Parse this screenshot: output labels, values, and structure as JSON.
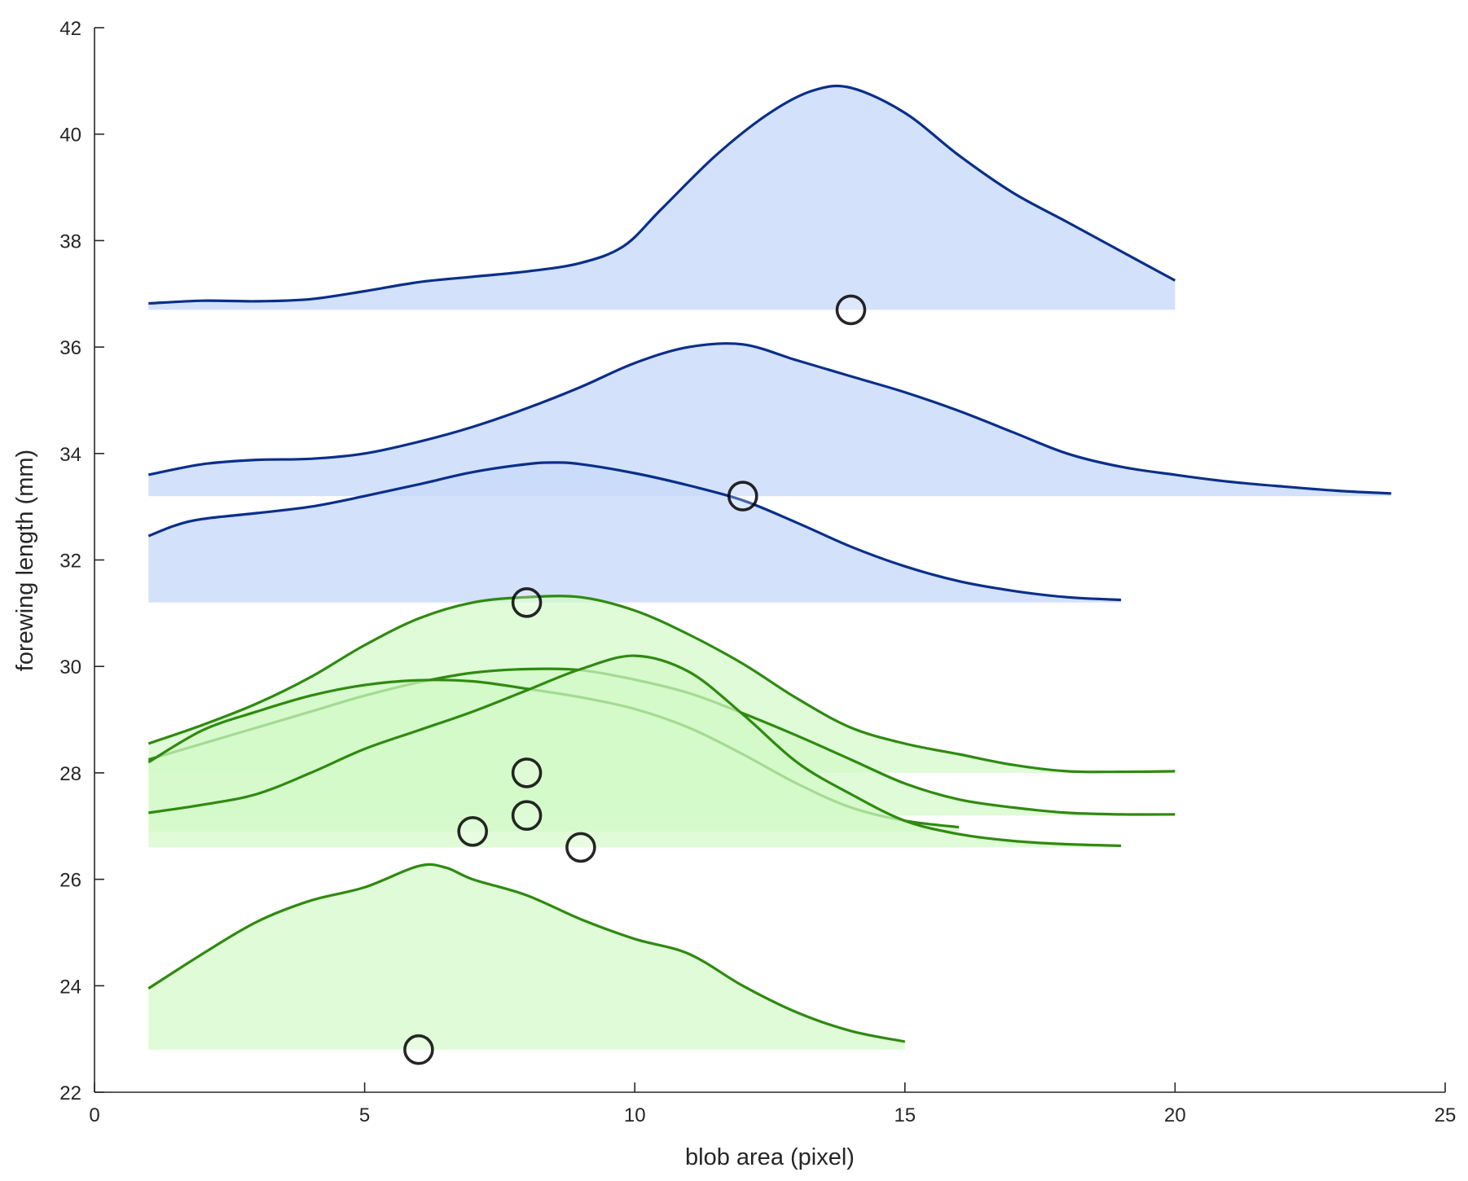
{
  "chart_data": {
    "type": "area",
    "title": "",
    "xlabel": "blob area (pixel)",
    "ylabel": "forewing length (mm)",
    "xlim": [
      0,
      25
    ],
    "ylim": [
      22,
      42
    ],
    "xticks": [
      0,
      5,
      10,
      15,
      20,
      25
    ],
    "yticks": [
      22,
      24,
      26,
      28,
      30,
      32,
      34,
      36,
      38,
      40,
      42
    ],
    "grid": false,
    "legend": "none",
    "colors": {
      "blue_line": "#0a2f8a",
      "blue_fill": "#c9dbfa",
      "green_line": "#2f8a10",
      "green_fill": "#d3fac7",
      "marker_stroke": "#000000",
      "marker_fill": "#ffffff"
    },
    "series": [
      {
        "group": "blue",
        "baseline": 36.7,
        "marker": [
          14,
          36.7
        ],
        "curve": [
          [
            1,
            36.82
          ],
          [
            2,
            36.87
          ],
          [
            3,
            36.86
          ],
          [
            4,
            36.9
          ],
          [
            5,
            37.05
          ],
          [
            6,
            37.22
          ],
          [
            7,
            37.32
          ],
          [
            8,
            37.42
          ],
          [
            9,
            37.58
          ],
          [
            9.8,
            37.9
          ],
          [
            10.5,
            38.6
          ],
          [
            11.5,
            39.6
          ],
          [
            12.5,
            40.4
          ],
          [
            13.3,
            40.82
          ],
          [
            14,
            40.87
          ],
          [
            15,
            40.4
          ],
          [
            16,
            39.6
          ],
          [
            17,
            38.9
          ],
          [
            18,
            38.35
          ],
          [
            19,
            37.8
          ],
          [
            20,
            37.25
          ]
        ]
      },
      {
        "group": "blue",
        "baseline": 33.2,
        "marker": [
          12,
          33.2
        ],
        "curve": [
          [
            1,
            33.6
          ],
          [
            2,
            33.8
          ],
          [
            3,
            33.88
          ],
          [
            4,
            33.9
          ],
          [
            5,
            34.0
          ],
          [
            6,
            34.22
          ],
          [
            7,
            34.5
          ],
          [
            8,
            34.85
          ],
          [
            9,
            35.25
          ],
          [
            10,
            35.7
          ],
          [
            11,
            36.0
          ],
          [
            12,
            36.05
          ],
          [
            13,
            35.75
          ],
          [
            14,
            35.45
          ],
          [
            15,
            35.15
          ],
          [
            16,
            34.8
          ],
          [
            17,
            34.4
          ],
          [
            18,
            34.0
          ],
          [
            19,
            33.75
          ],
          [
            20,
            33.6
          ],
          [
            21,
            33.47
          ],
          [
            22,
            33.38
          ],
          [
            23,
            33.3
          ],
          [
            24,
            33.25
          ]
        ]
      },
      {
        "group": "blue",
        "baseline": 31.2,
        "marker": [
          8,
          31.2
        ],
        "curve": [
          [
            1,
            32.45
          ],
          [
            1.5,
            32.65
          ],
          [
            2,
            32.77
          ],
          [
            3,
            32.88
          ],
          [
            4,
            33.0
          ],
          [
            5,
            33.2
          ],
          [
            6,
            33.42
          ],
          [
            7,
            33.65
          ],
          [
            8,
            33.8
          ],
          [
            8.5,
            33.83
          ],
          [
            9,
            33.8
          ],
          [
            10,
            33.63
          ],
          [
            11,
            33.4
          ],
          [
            12,
            33.12
          ],
          [
            13,
            32.7
          ],
          [
            14,
            32.25
          ],
          [
            15,
            31.88
          ],
          [
            16,
            31.6
          ],
          [
            17,
            31.42
          ],
          [
            18,
            31.3
          ],
          [
            19,
            31.25
          ]
        ]
      },
      {
        "group": "green",
        "baseline": 28.0,
        "marker": [
          8,
          28.0
        ],
        "curve": [
          [
            1,
            28.55
          ],
          [
            2,
            28.9
          ],
          [
            3,
            29.3
          ],
          [
            4,
            29.8
          ],
          [
            5,
            30.4
          ],
          [
            6,
            30.9
          ],
          [
            7,
            31.2
          ],
          [
            8,
            31.3
          ],
          [
            9,
            31.3
          ],
          [
            10,
            31.05
          ],
          [
            11,
            30.6
          ],
          [
            12,
            30.05
          ],
          [
            13,
            29.4
          ],
          [
            14,
            28.85
          ],
          [
            15,
            28.55
          ],
          [
            16,
            28.35
          ],
          [
            17,
            28.15
          ],
          [
            18,
            28.03
          ],
          [
            19,
            28.02
          ],
          [
            20,
            28.03
          ]
        ]
      },
      {
        "group": "green",
        "baseline": 27.2,
        "marker": [
          8,
          27.2
        ],
        "curve": [
          [
            1,
            28.25
          ],
          [
            2,
            28.55
          ],
          [
            3,
            28.85
          ],
          [
            4,
            29.15
          ],
          [
            5,
            29.45
          ],
          [
            6,
            29.7
          ],
          [
            7,
            29.88
          ],
          [
            8,
            29.95
          ],
          [
            9,
            29.93
          ],
          [
            10,
            29.75
          ],
          [
            11,
            29.5
          ],
          [
            12,
            29.12
          ],
          [
            13,
            28.7
          ],
          [
            14,
            28.25
          ],
          [
            15,
            27.8
          ],
          [
            16,
            27.5
          ],
          [
            17,
            27.35
          ],
          [
            18,
            27.25
          ],
          [
            19,
            27.22
          ],
          [
            20,
            27.22
          ]
        ]
      },
      {
        "group": "green",
        "baseline": 26.9,
        "marker": [
          7,
          26.9
        ],
        "curve": [
          [
            1,
            28.2
          ],
          [
            2,
            28.8
          ],
          [
            3,
            29.15
          ],
          [
            4,
            29.45
          ],
          [
            5,
            29.65
          ],
          [
            6,
            29.74
          ],
          [
            7,
            29.72
          ],
          [
            8,
            29.58
          ],
          [
            9,
            29.42
          ],
          [
            10,
            29.2
          ],
          [
            11,
            28.85
          ],
          [
            12,
            28.35
          ],
          [
            13,
            27.8
          ],
          [
            14,
            27.35
          ],
          [
            15,
            27.1
          ],
          [
            16,
            26.98
          ]
        ]
      },
      {
        "group": "green",
        "baseline": 26.6,
        "marker": [
          9,
          26.6
        ],
        "curve": [
          [
            1,
            27.25
          ],
          [
            2,
            27.4
          ],
          [
            3,
            27.6
          ],
          [
            4,
            28.0
          ],
          [
            5,
            28.45
          ],
          [
            6,
            28.8
          ],
          [
            7,
            29.15
          ],
          [
            8,
            29.55
          ],
          [
            9,
            29.95
          ],
          [
            10,
            30.2
          ],
          [
            11,
            29.9
          ],
          [
            12,
            29.1
          ],
          [
            13,
            28.2
          ],
          [
            14,
            27.6
          ],
          [
            15,
            27.1
          ],
          [
            16,
            26.85
          ],
          [
            17,
            26.72
          ],
          [
            18,
            26.66
          ],
          [
            19,
            26.63
          ]
        ]
      },
      {
        "group": "green",
        "baseline": 22.8,
        "marker": [
          6,
          22.8
        ],
        "curve": [
          [
            1,
            23.95
          ],
          [
            2,
            24.6
          ],
          [
            3,
            25.2
          ],
          [
            4,
            25.6
          ],
          [
            5,
            25.85
          ],
          [
            6,
            26.25
          ],
          [
            6.5,
            26.22
          ],
          [
            7,
            26.0
          ],
          [
            8,
            25.7
          ],
          [
            9,
            25.25
          ],
          [
            10,
            24.88
          ],
          [
            11,
            24.6
          ],
          [
            12,
            24.0
          ],
          [
            13,
            23.5
          ],
          [
            14,
            23.15
          ],
          [
            15,
            22.95
          ]
        ]
      }
    ]
  }
}
